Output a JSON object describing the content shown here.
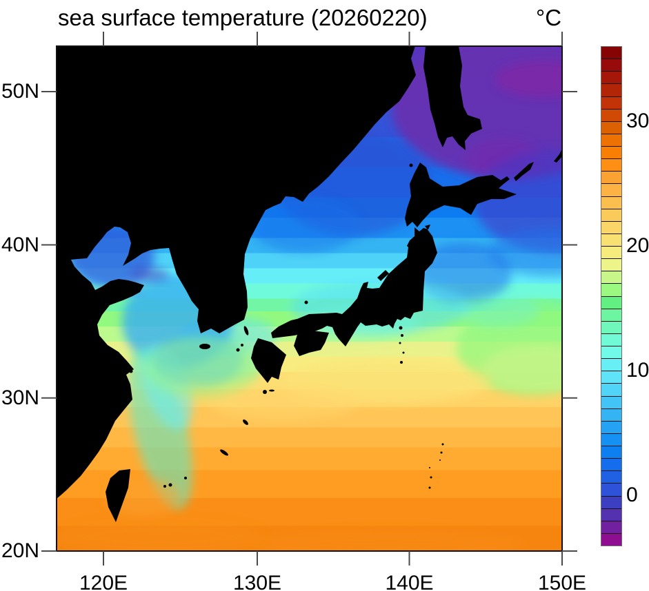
{
  "header": {
    "title": "sea surface temperature (20260220)",
    "units_label": "°C"
  },
  "chart_data": {
    "type": "heatmap",
    "title": "sea surface temperature (20260220)",
    "variable": "sea surface temperature",
    "date_label": "20260220",
    "units": "°C",
    "lon_range_deg_e": [
      116.8,
      150
    ],
    "lat_range_deg_n": [
      20,
      53
    ],
    "x_tick_labels": [
      "120E",
      "130E",
      "140E",
      "150E"
    ],
    "y_tick_labels": [
      "20N",
      "30N",
      "40N",
      "50N"
    ],
    "land_color": "#000000",
    "background_color": "#ffffff",
    "colorbar": {
      "min": -4,
      "max": 36,
      "interval": 1,
      "tick_values": [
        0,
        10,
        20,
        30
      ],
      "tick_labels": [
        "0",
        "10",
        "20",
        "30"
      ],
      "palette_bottom_to_top": [
        "#8E0D90",
        "#71209F",
        "#5431AF",
        "#3C3FC0",
        "#2E52D8",
        "#2060E2",
        "#146DEC",
        "#0D7FF0",
        "#1590F3",
        "#25A2F3",
        "#34B4F3",
        "#42C5F6",
        "#50D4F8",
        "#5FE3F8",
        "#68EFF5",
        "#71FAE8",
        "#70FAD5",
        "#6FF7BC",
        "#6EF5A2",
        "#63F083",
        "#9BF881",
        "#C9F68B",
        "#EDF489",
        "#F6EC7E",
        "#F8E172",
        "#F9D667",
        "#FACB5B",
        "#FBBF4F",
        "#FCB343",
        "#FBA332",
        "#FC8F14",
        "#F87F04",
        "#EE7103",
        "#DB6103",
        "#D04A06",
        "#C23307",
        "#B22507",
        "#A51809",
        "#970C0B",
        "#860404"
      ]
    },
    "representative_values_c": {
      "sea_of_okhotsk": -2,
      "nw_pacific_46n": 0,
      "tatar_strait": 1,
      "sea_of_japan_north": 4,
      "sea_of_japan_south": 10,
      "pacific_east_of_honshu_38n": 8,
      "east_of_honshu_warm_tongue": 16,
      "yellow_sea": 6,
      "bohai_sea": 0,
      "korea_strait": 12,
      "east_china_sea": 16,
      "kuroshio_south_of_honshu": 20,
      "okinawa_area": 22,
      "east_of_taiwan": 25,
      "southern_boundary_20n": 27
    }
  }
}
